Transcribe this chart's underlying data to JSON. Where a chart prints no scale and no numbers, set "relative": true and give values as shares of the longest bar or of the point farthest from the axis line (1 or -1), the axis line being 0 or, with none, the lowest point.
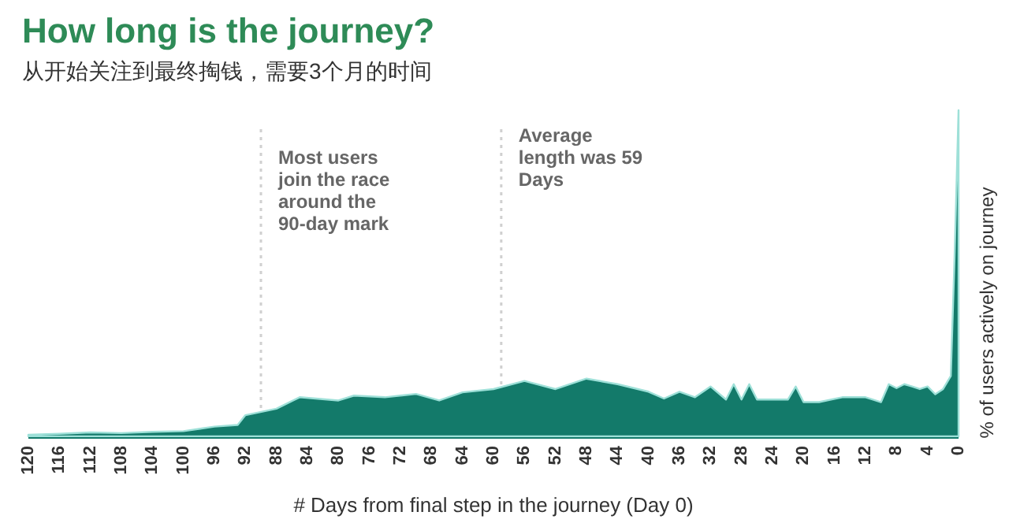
{
  "chart_data": {
    "type": "area",
    "title": "How long is the journey?",
    "subtitle": "从开始关注到最终掏钱，需要3个月的时间",
    "xlabel": "# Days from final step in the journey (Day 0)",
    "ylabel": "% of users actively on journey",
    "relative": true,
    "x": [
      120,
      116,
      112,
      108,
      104,
      100,
      96,
      93,
      92,
      88,
      85,
      80,
      78,
      74,
      70,
      67,
      64,
      60,
      56,
      52,
      48,
      44,
      40,
      38,
      36,
      34,
      32,
      30,
      29,
      28,
      27,
      26,
      24,
      22,
      21,
      20,
      18,
      15,
      12,
      10,
      9,
      8,
      7,
      6,
      5,
      4,
      3,
      2,
      1,
      0.5,
      0
    ],
    "series": [
      {
        "color": "#137a6a",
        "values": [
          0.005,
          0.008,
          0.012,
          0.01,
          0.014,
          0.016,
          0.03,
          0.035,
          0.065,
          0.085,
          0.12,
          0.11,
          0.125,
          0.12,
          0.13,
          0.11,
          0.135,
          0.145,
          0.17,
          0.145,
          0.177,
          0.16,
          0.137,
          0.116,
          0.137,
          0.12,
          0.153,
          0.113,
          0.16,
          0.113,
          0.16,
          0.113,
          0.113,
          0.113,
          0.153,
          0.105,
          0.105,
          0.12,
          0.12,
          0.105,
          0.16,
          0.148,
          0.16,
          0.153,
          0.145,
          0.153,
          0.129,
          0.145,
          0.185,
          0.56,
          1.0
        ]
      }
    ],
    "xlim": [
      120,
      0
    ],
    "xticks": [
      120,
      116,
      112,
      108,
      104,
      100,
      96,
      92,
      88,
      84,
      80,
      76,
      72,
      68,
      64,
      60,
      56,
      52,
      48,
      44,
      40,
      36,
      32,
      28,
      24,
      20,
      16,
      12,
      8,
      4,
      0
    ],
    "ref_lines": [
      {
        "axis": "x",
        "value": 90,
        "label": "Most users join the race around the 90-day mark",
        "color": "#d0d0d0",
        "line_style": "dotted"
      },
      {
        "axis": "x",
        "value": 59,
        "label": "Average length was 59 Days",
        "color": "#d0d0d0",
        "line_style": "dotted"
      }
    ],
    "grid": false
  }
}
